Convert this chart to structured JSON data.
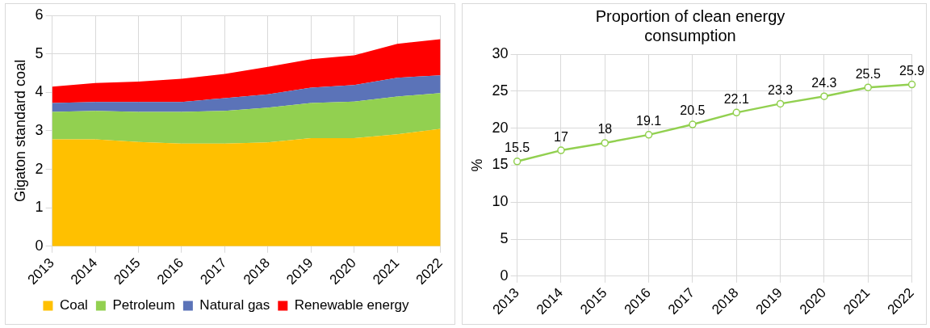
{
  "chart_data": [
    {
      "type": "area",
      "stacked": true,
      "ylabel": "Gigaton standard coal",
      "categories": [
        "2013",
        "2014",
        "2015",
        "2016",
        "2017",
        "2018",
        "2019",
        "2020",
        "2021",
        "2022"
      ],
      "ylim": [
        0,
        6
      ],
      "yticks": [
        0,
        1,
        2,
        3,
        4,
        5,
        6
      ],
      "grid": true,
      "legend": "bottom",
      "series": [
        {
          "name": "Coal",
          "color": "#ffc000",
          "values": [
            2.78,
            2.78,
            2.71,
            2.67,
            2.67,
            2.7,
            2.81,
            2.81,
            2.91,
            3.05
          ]
        },
        {
          "name": "Petroleum",
          "color": "#92d050",
          "values": [
            0.71,
            0.74,
            0.78,
            0.82,
            0.85,
            0.9,
            0.91,
            0.95,
            0.98,
            0.93
          ]
        },
        {
          "name": "Natural gas",
          "color": "#5b73b8",
          "values": [
            0.23,
            0.23,
            0.26,
            0.26,
            0.33,
            0.35,
            0.4,
            0.43,
            0.49,
            0.46
          ]
        },
        {
          "name": "Renewable energy",
          "color": "#ff0000",
          "values": [
            0.43,
            0.49,
            0.53,
            0.6,
            0.63,
            0.71,
            0.74,
            0.77,
            0.88,
            0.94
          ]
        }
      ]
    },
    {
      "type": "line",
      "title": "Proportion of clean energy consumption",
      "ylabel": "%",
      "categories": [
        "2013",
        "2014",
        "2015",
        "2016",
        "2017",
        "2018",
        "2019",
        "2020",
        "2021",
        "2022"
      ],
      "ylim": [
        0,
        30
      ],
      "yticks": [
        0,
        5,
        10,
        15,
        20,
        25,
        30
      ],
      "grid": true,
      "marker": "circle",
      "data_labels": true,
      "series": [
        {
          "color": "#92d050",
          "values": [
            15.5,
            17,
            18,
            19.1,
            20.5,
            22.1,
            23.3,
            24.3,
            25.5,
            25.9
          ]
        }
      ]
    }
  ]
}
